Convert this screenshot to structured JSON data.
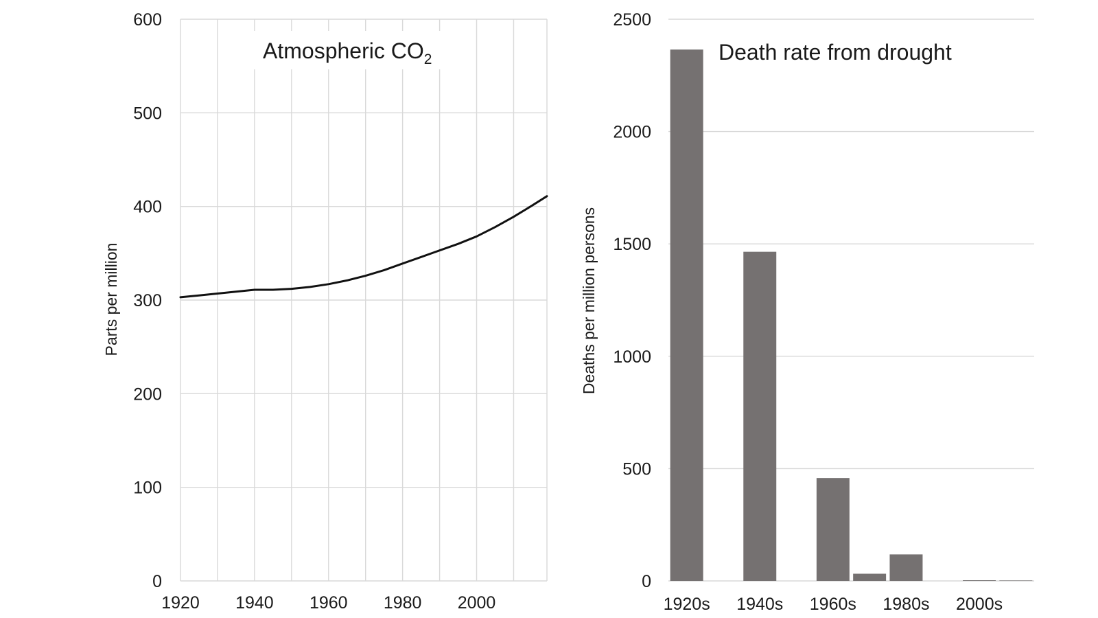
{
  "chart_data": [
    {
      "type": "line",
      "title_main": "Atmospheric CO",
      "title_sub": "2",
      "ylabel": "Parts per million",
      "xlabel": "",
      "xlim": [
        1920,
        2019
      ],
      "ylim": [
        0,
        600
      ],
      "yticks": [
        0,
        100,
        200,
        300,
        400,
        500,
        600
      ],
      "xticks": [
        1920,
        1940,
        1960,
        1980,
        2000
      ],
      "x_gridlines": [
        1920,
        1930,
        1940,
        1950,
        1960,
        1970,
        1980,
        1990,
        2000,
        2010,
        2019
      ],
      "grid": true,
      "color": "#111111",
      "series": [
        {
          "x": [
            1920,
            1925,
            1930,
            1935,
            1940,
            1945,
            1950,
            1955,
            1960,
            1965,
            1970,
            1975,
            1980,
            1985,
            1990,
            1995,
            2000,
            2005,
            2010,
            2015,
            2019
          ],
          "y": [
            303,
            305,
            307,
            309,
            311,
            311,
            312,
            314,
            317,
            321,
            326,
            332,
            339,
            346,
            353,
            360,
            368,
            378,
            389,
            401,
            411
          ]
        }
      ]
    },
    {
      "type": "bar",
      "title": "Death rate from drought",
      "ylabel": "Deaths per million persons",
      "xlabel": "",
      "ylim": [
        0,
        2500
      ],
      "yticks": [
        0,
        500,
        1000,
        1500,
        2000,
        2500
      ],
      "grid": true,
      "color": "#757171",
      "categories": [
        "1920s",
        "1930s",
        "1940s",
        "1950s",
        "1960s",
        "1970s",
        "1980s",
        "1990s",
        "2000s",
        "2010s"
      ],
      "tick_labels": [
        "1920s",
        "",
        "1940s",
        "",
        "1960s",
        "",
        "1980s",
        "",
        "2000s",
        ""
      ],
      "values": [
        2365,
        0,
        1465,
        0,
        458,
        32,
        118,
        0,
        3,
        2
      ]
    }
  ]
}
